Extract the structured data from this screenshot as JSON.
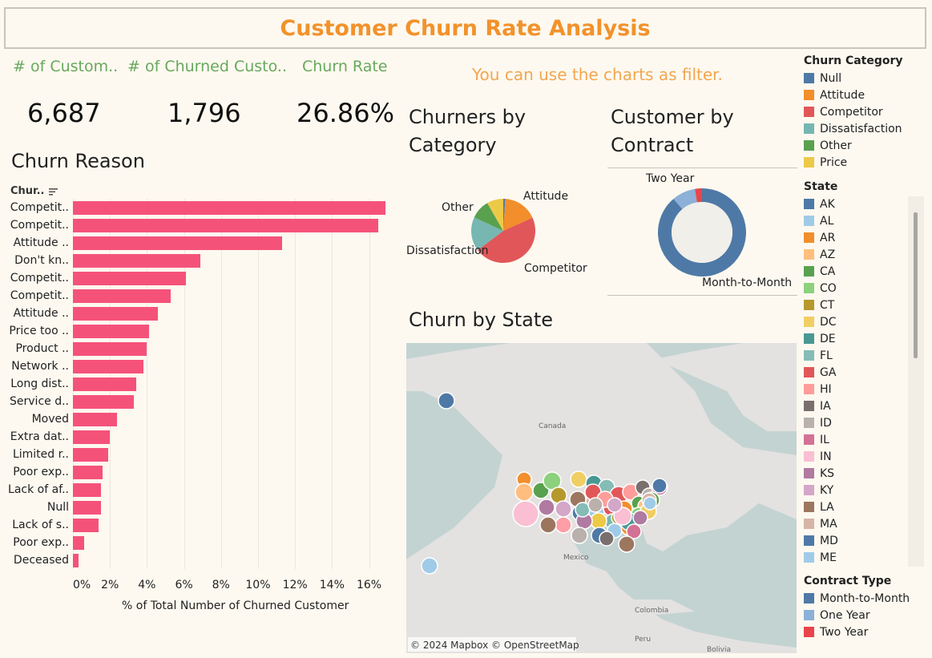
{
  "title": "Customer Churn Rate Analysis",
  "kpis": [
    {
      "label": "# of Custom..",
      "value": "6,687"
    },
    {
      "label": "# of Churned Custo..",
      "value": "1,796"
    },
    {
      "label": "Churn Rate",
      "value": "26.86%"
    }
  ],
  "hint": "You can use the charts as filter.",
  "churn_reason": {
    "title": "Churn Reason",
    "column_header": "Chur..",
    "xlabel": "% of Total Number of Churned Customer",
    "ticks": [
      "0%",
      "2%",
      "4%",
      "6%",
      "8%",
      "10%",
      "12%",
      "14%",
      "16%"
    ]
  },
  "churners_by_category": {
    "title_line1": "Churners by",
    "title_line2": "Category"
  },
  "customer_by_contract": {
    "title_line1": "Customer by",
    "title_line2": "Contract"
  },
  "churn_by_state": {
    "title": "Churn by State",
    "attribution": "© 2024 Mapbox © OpenStreetMap",
    "labels": {
      "canada": "Canada",
      "mexico": "Mexico",
      "colombia": "Colombia",
      "peru": "Peru",
      "bolivia": "Bolivia"
    }
  },
  "legends": {
    "churn_category": {
      "title": "Churn Category",
      "items": [
        {
          "label": "Null",
          "color": "#4e79a7"
        },
        {
          "label": "Attitude",
          "color": "#f28e2b"
        },
        {
          "label": "Competitor",
          "color": "#e15759"
        },
        {
          "label": "Dissatisfaction",
          "color": "#76b7b2"
        },
        {
          "label": "Other",
          "color": "#59a14f"
        },
        {
          "label": "Price",
          "color": "#edc948"
        }
      ]
    },
    "state": {
      "title": "State",
      "items": [
        {
          "label": "AK",
          "color": "#4e79a7"
        },
        {
          "label": "AL",
          "color": "#a0cbe8"
        },
        {
          "label": "AR",
          "color": "#f28e2b"
        },
        {
          "label": "AZ",
          "color": "#ffbe7d"
        },
        {
          "label": "CA",
          "color": "#59a14f"
        },
        {
          "label": "CO",
          "color": "#8cd17d"
        },
        {
          "label": "CT",
          "color": "#b6992d"
        },
        {
          "label": "DC",
          "color": "#f1ce63"
        },
        {
          "label": "DE",
          "color": "#499894"
        },
        {
          "label": "FL",
          "color": "#86bcb6"
        },
        {
          "label": "GA",
          "color": "#e15759"
        },
        {
          "label": "HI",
          "color": "#ff9d9a"
        },
        {
          "label": "IA",
          "color": "#79706e"
        },
        {
          "label": "ID",
          "color": "#bab0ac"
        },
        {
          "label": "IL",
          "color": "#d37295"
        },
        {
          "label": "IN",
          "color": "#fabfd2"
        },
        {
          "label": "KS",
          "color": "#b07aa1"
        },
        {
          "label": "KY",
          "color": "#d4a6c8"
        },
        {
          "label": "LA",
          "color": "#9d7660"
        },
        {
          "label": "MA",
          "color": "#d7b5a6"
        },
        {
          "label": "MD",
          "color": "#4e79a7"
        },
        {
          "label": "ME",
          "color": "#a0cbe8"
        }
      ]
    },
    "contract_type": {
      "title": "Contract Type",
      "items": [
        {
          "label": "Month-to-Month",
          "color": "#4e79a7"
        },
        {
          "label": "One Year",
          "color": "#8cb0d8"
        },
        {
          "label": "Two Year",
          "color": "#e8454a"
        }
      ]
    }
  },
  "chart_data": [
    {
      "type": "bar",
      "orientation": "horizontal",
      "title": "Churn Reason",
      "xlabel": "% of Total Number of Churned Customer",
      "xlim": [
        0,
        17
      ],
      "categories": [
        "Competit..",
        "Competit..",
        "Attitude ..",
        "Don't kn..",
        "Competit..",
        "Competit..",
        "Attitude ..",
        "Price too ..",
        "Product ..",
        "Network ..",
        "Long dist..",
        "Service d..",
        "Moved",
        "Extra dat..",
        "Limited r..",
        "Poor exp..",
        "Lack of af..",
        "Null",
        "Lack of s..",
        "Poor exp..",
        "Deceased"
      ],
      "values": [
        16.9,
        16.5,
        11.3,
        6.9,
        6.1,
        5.3,
        4.6,
        4.1,
        4.0,
        3.8,
        3.4,
        3.3,
        2.4,
        2.0,
        1.9,
        1.6,
        1.5,
        1.5,
        1.4,
        0.6,
        0.3
      ]
    },
    {
      "type": "pie",
      "title": "Churners by Category",
      "categories": [
        "Null",
        "Attitude",
        "Competitor",
        "Dissatisfaction",
        "Other",
        "Price"
      ],
      "values": [
        1.0,
        17.3,
        46.4,
        17.2,
        9.8,
        8.3
      ],
      "labels_shown": [
        "Attitude",
        "Competitor",
        "Dissatisfaction",
        "Other"
      ]
    },
    {
      "type": "pie",
      "title": "Customer by Contract",
      "categories": [
        "Month-to-Month",
        "One Year",
        "Two Year"
      ],
      "values": [
        88.8,
        8.6,
        2.6
      ],
      "labels_shown": [
        "Two Year",
        "Month-to-Month"
      ]
    }
  ]
}
